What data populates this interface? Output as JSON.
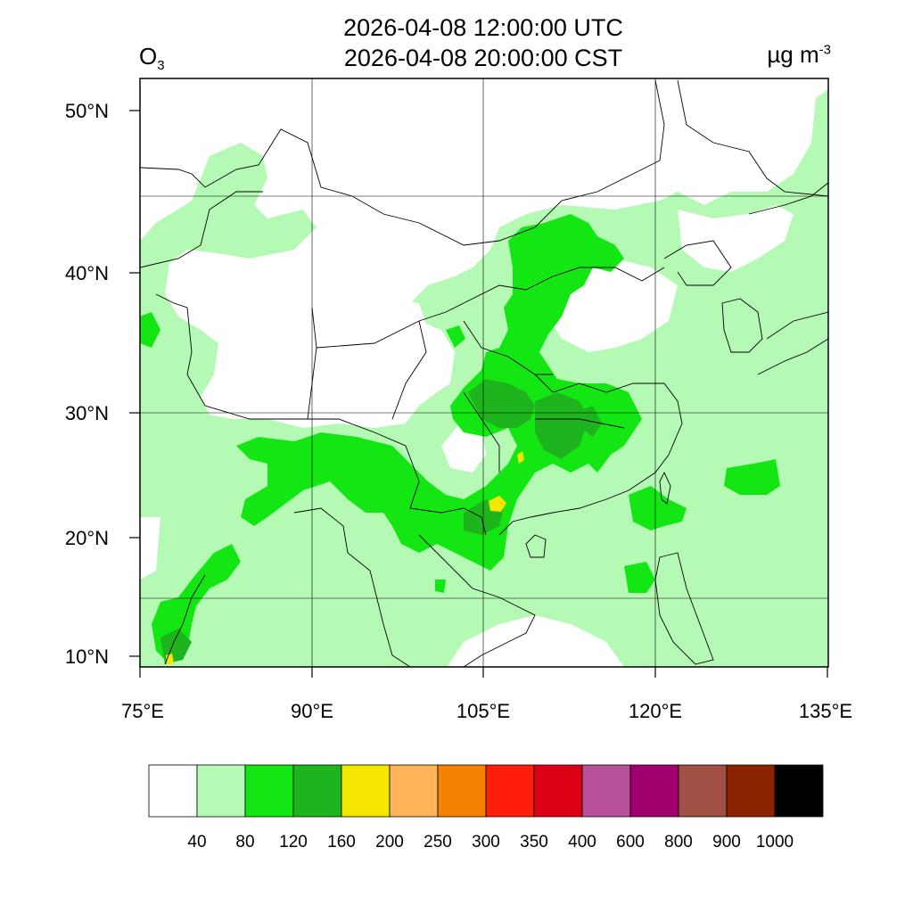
{
  "title": {
    "utc": "2026-04-08 12:00:00 UTC",
    "local": "2026-04-08 20:00:00 CST"
  },
  "variable": {
    "name": "O",
    "subscript": "3"
  },
  "unit": {
    "base": "µg m",
    "exponent": "-3"
  },
  "axes": {
    "lon_ticks": [
      "75°E",
      "90°E",
      "105°E",
      "120°E",
      "135°E"
    ],
    "lat_ticks": [
      "50°N",
      "40°N",
      "30°N",
      "20°N",
      "10°N"
    ],
    "lon_range": [
      75,
      135
    ],
    "lat_range": [
      9,
      52
    ]
  },
  "colorbar": {
    "colors": [
      "#ffffff",
      "#b4fab4",
      "#14e614",
      "#1eb41e",
      "#f5e600",
      "#ffb45a",
      "#f58200",
      "#ff1e0a",
      "#dc0014",
      "#b9509b",
      "#a0006e",
      "#a05044",
      "#8c2300",
      "#000000"
    ],
    "labels": [
      "40",
      "80",
      "120",
      "160",
      "200",
      "250",
      "300",
      "350",
      "400",
      "600",
      "800",
      "900",
      "1000"
    ]
  },
  "colors": {
    "light_green": "#b4fab4",
    "green": "#14e614",
    "dark_green": "#1eb41e",
    "yellow": "#f5e600"
  }
}
